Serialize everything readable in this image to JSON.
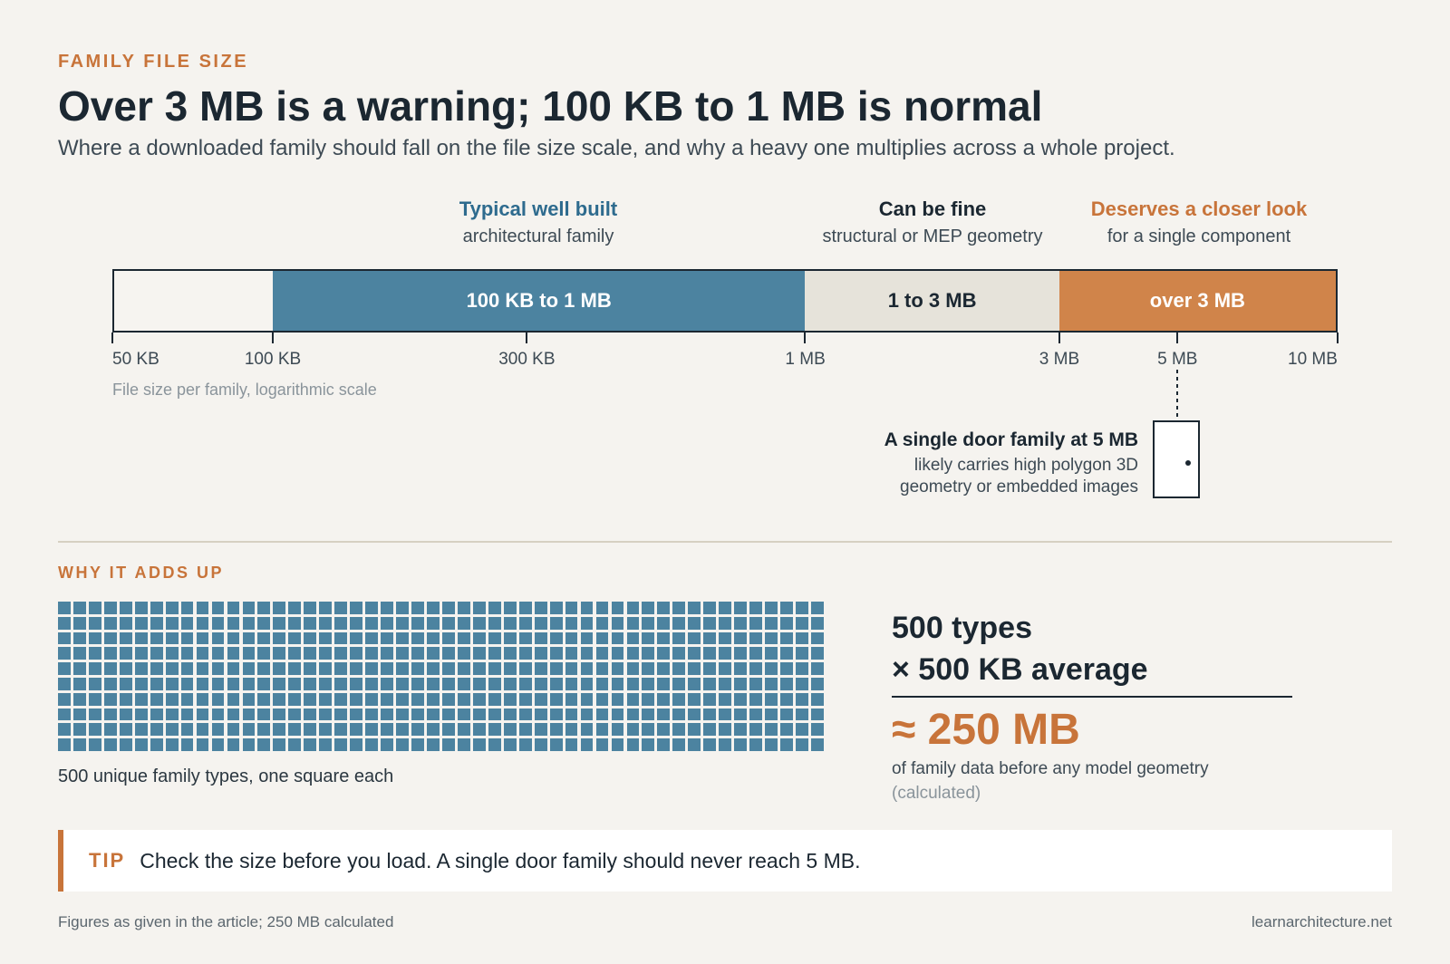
{
  "header": {
    "eyebrow": "FAMILY FILE SIZE",
    "title": "Over 3 MB is a warning; 100 KB to 1 MB is normal",
    "subtitle": "Where a downloaded family should fall on the file size scale, and why a heavy one multiplies across a whole project."
  },
  "colors": {
    "accent": "#c8743a",
    "typical": "#4c83a0",
    "fine": "#e6e3da",
    "warning": "#d0844a",
    "ink": "#1b2731"
  },
  "chart_data": [
    {
      "type": "bar",
      "scale": "log",
      "axis_title": "File size per family, logarithmic scale",
      "xlim_kb": [
        50,
        10000
      ],
      "ticks": [
        {
          "label": "50 KB",
          "kb": 50
        },
        {
          "label": "100 KB",
          "kb": 100
        },
        {
          "label": "300 KB",
          "kb": 300
        },
        {
          "label": "1 MB",
          "kb": 1000
        },
        {
          "label": "3 MB",
          "kb": 3000
        },
        {
          "label": "5 MB",
          "kb": 5000
        },
        {
          "label": "10 MB",
          "kb": 10000
        }
      ],
      "bands": [
        {
          "label": "100 KB to 1 MB",
          "from_kb": 100,
          "to_kb": 1000,
          "heading": "Typical well built",
          "note": "architectural family",
          "color": "#4c83a0",
          "text_color": "#ffffff",
          "heading_color": "#2e6b8e"
        },
        {
          "label": "1 to 3 MB",
          "from_kb": 1000,
          "to_kb": 3000,
          "heading": "Can be fine",
          "note": "structural or MEP geometry",
          "color": "#e6e3da",
          "text_color": "#1b2731",
          "heading_color": "#1b2731"
        },
        {
          "label": "over 3 MB",
          "from_kb": 3000,
          "to_kb": 10000,
          "heading": "Deserves a closer look",
          "note": "for a single component",
          "color": "#d0844a",
          "text_color": "#ffffff",
          "heading_color": "#c8743a"
        }
      ],
      "callout": {
        "at_kb": 5000,
        "heading": "A single door family at 5 MB",
        "line1": "likely carries high polygon 3D",
        "line2": "geometry or embedded images"
      }
    },
    {
      "type": "waffle",
      "count": 500,
      "columns": 50,
      "rows": 10,
      "caption": "500 unique family types, one square each"
    }
  ],
  "section2": {
    "eyebrow": "WHY IT ADDS UP",
    "line1": "500 types",
    "line2": "× 500 KB average",
    "result": "≈ 250 MB",
    "desc": "of family data before any model geometry",
    "note": "(calculated)"
  },
  "tip": {
    "tag": "TIP",
    "text": "Check the size before you load. A single door family should never reach 5 MB."
  },
  "footer": {
    "left": "Figures as given in the article; 250 MB calculated",
    "right": "learnarchitecture.net"
  }
}
